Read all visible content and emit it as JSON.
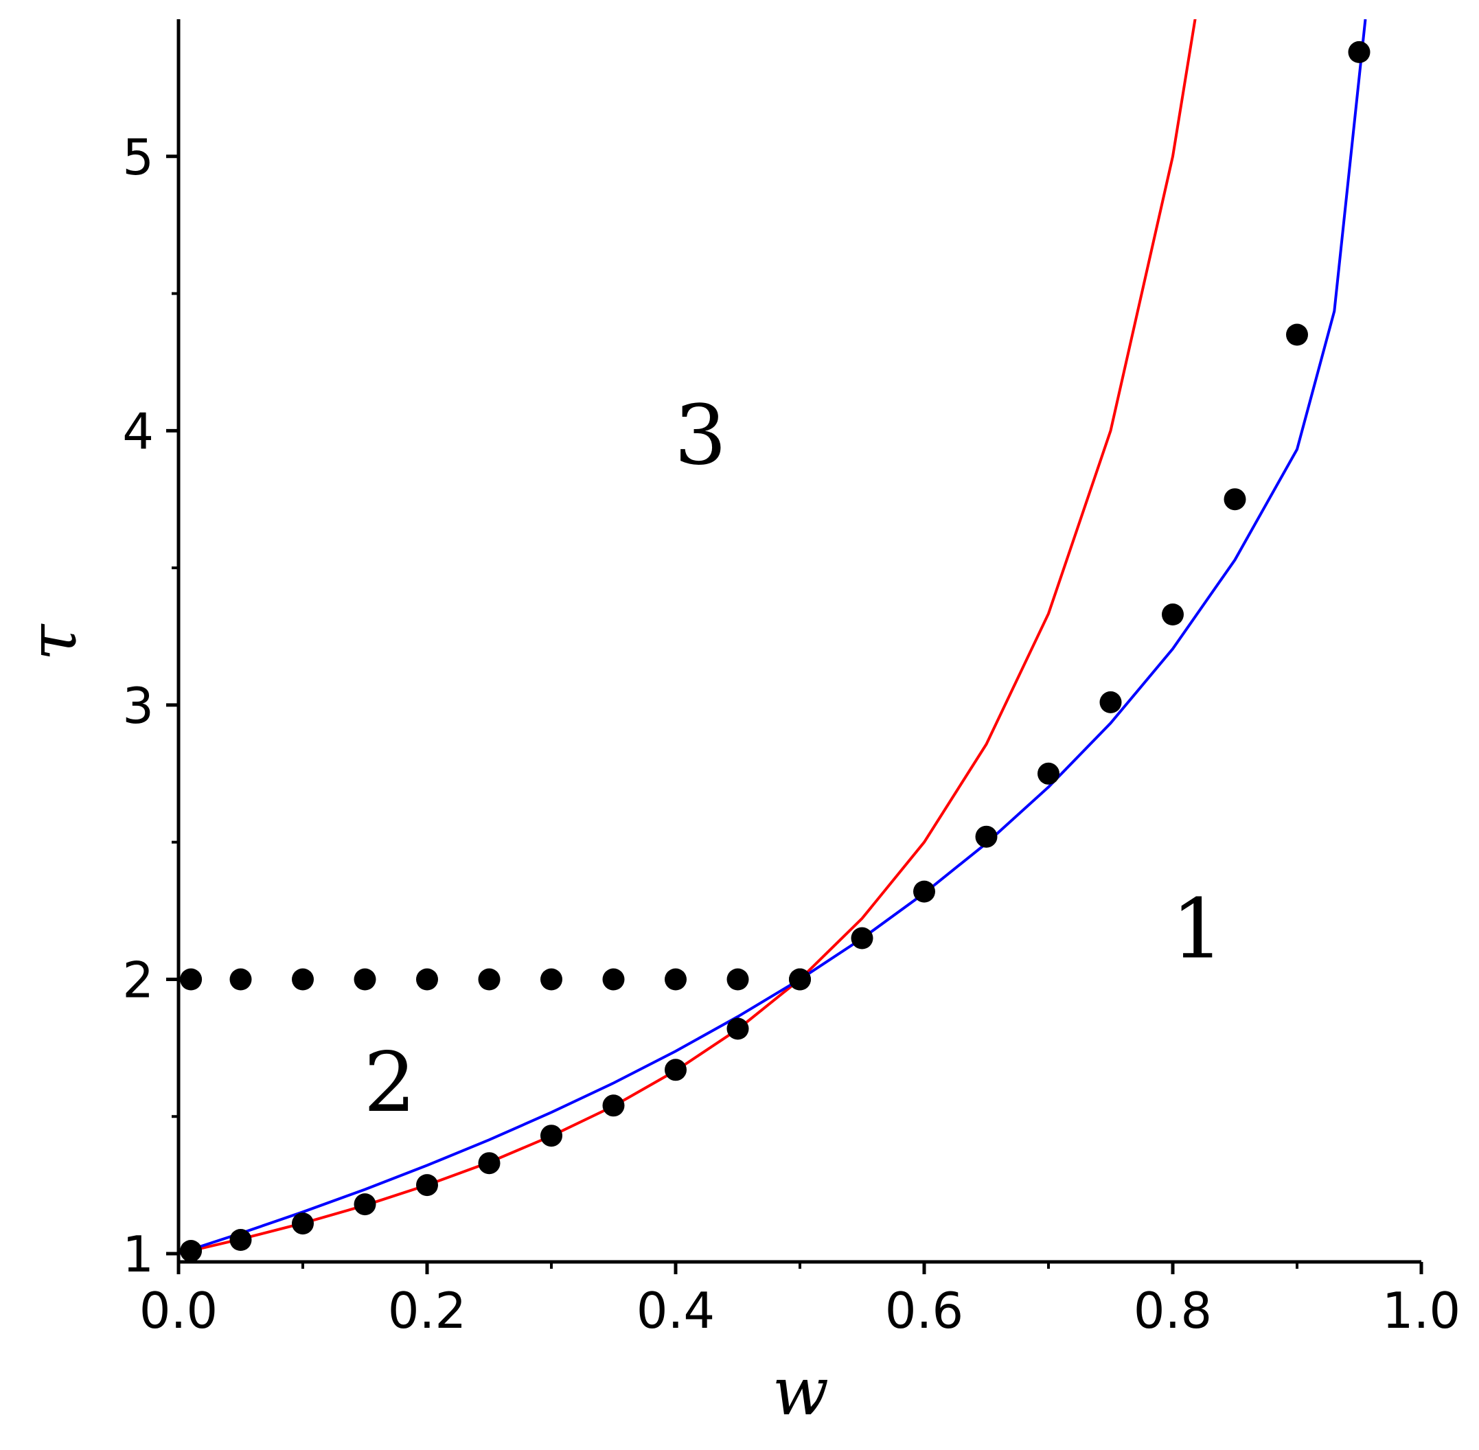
{
  "chart_data": {
    "type": "line",
    "xlabel": "w",
    "ylabel": "τ",
    "xlim": [
      0.0,
      1.0
    ],
    "ylim": [
      0.97,
      5.5
    ],
    "grid": false,
    "x_ticks": [
      "0.0",
      "0.2",
      "0.4",
      "0.6",
      "0.8",
      "1.0"
    ],
    "x_tick_values": [
      0.0,
      0.2,
      0.4,
      0.6,
      0.8,
      1.0
    ],
    "x_minor_ticks": [
      0.1,
      0.3,
      0.5,
      0.7,
      0.9
    ],
    "y_ticks": [
      "1",
      "2",
      "3",
      "4",
      "5"
    ],
    "y_tick_values": [
      1,
      2,
      3,
      4,
      5
    ],
    "y_minor_ticks": [
      1.5,
      2.5,
      3.5,
      4.5
    ],
    "series": [
      {
        "type": "line",
        "color": "#ff0000",
        "x": [
          0.0,
          0.05,
          0.1,
          0.15,
          0.2,
          0.25,
          0.3,
          0.35,
          0.4,
          0.45,
          0.5,
          0.55,
          0.6,
          0.65,
          0.7,
          0.75,
          0.8,
          0.82
        ],
        "y": [
          1.0,
          1.053,
          1.111,
          1.176,
          1.25,
          1.333,
          1.429,
          1.538,
          1.667,
          1.818,
          2.0,
          2.222,
          2.5,
          2.857,
          3.333,
          4.0,
          5.0,
          5.556
        ]
      },
      {
        "type": "line",
        "color": "#0000ff",
        "x": [
          0.0,
          0.05,
          0.1,
          0.15,
          0.2,
          0.25,
          0.3,
          0.35,
          0.4,
          0.45,
          0.5,
          0.55,
          0.6,
          0.65,
          0.7,
          0.75,
          0.8,
          0.85,
          0.9,
          0.93,
          0.955
        ],
        "y": [
          1.0,
          1.074,
          1.152,
          1.234,
          1.322,
          1.415,
          1.515,
          1.622,
          1.738,
          1.864,
          2.0,
          2.149,
          2.314,
          2.496,
          2.701,
          2.934,
          3.205,
          3.529,
          3.932,
          4.436,
          5.5
        ]
      },
      {
        "type": "scatter",
        "color": "#000000",
        "x": [
          0.01,
          0.05,
          0.1,
          0.15,
          0.2,
          0.25,
          0.3,
          0.35,
          0.4,
          0.45,
          0.5,
          0.55,
          0.6,
          0.65,
          0.7,
          0.75,
          0.8,
          0.85,
          0.9,
          0.95
        ],
        "y": [
          1.01,
          1.05,
          1.11,
          1.18,
          1.25,
          1.33,
          1.43,
          1.54,
          1.67,
          1.82,
          2.0,
          2.15,
          2.32,
          2.52,
          2.75,
          3.01,
          3.33,
          3.75,
          4.35,
          5.38
        ]
      },
      {
        "type": "scatter",
        "color": "#000000",
        "x": [
          0.01,
          0.05,
          0.1,
          0.15,
          0.2,
          0.25,
          0.3,
          0.35,
          0.4,
          0.45,
          0.5
        ],
        "y": [
          2.0,
          2.0,
          2.0,
          2.0,
          2.0,
          2.0,
          2.0,
          2.0,
          2.0,
          2.0,
          2.0
        ]
      }
    ],
    "annotations": [
      {
        "text": "3",
        "x": 0.42,
        "y": 3.88
      },
      {
        "text": "1",
        "x": 0.82,
        "y": 2.08
      },
      {
        "text": "2",
        "x": 0.17,
        "y": 1.52
      }
    ]
  }
}
